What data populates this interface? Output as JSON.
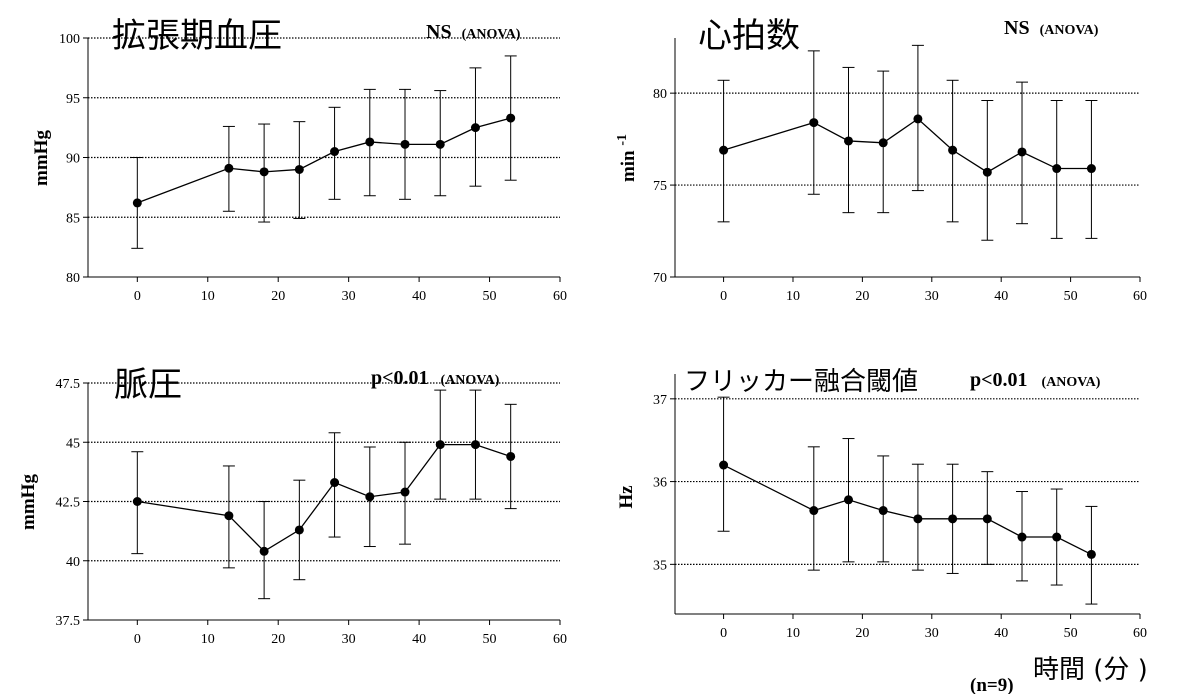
{
  "chart_data": [
    {
      "type": "line",
      "title": "拡張期血圧",
      "stat": "NS",
      "stat_note": "(ANOVA)",
      "ylabel": "mmHg",
      "ylabel_sup": "",
      "xlim": [
        -7,
        60
      ],
      "ylim": [
        80,
        100
      ],
      "yticks": [
        80,
        85,
        90,
        95,
        100
      ],
      "ytick_labels": [
        "80",
        "85",
        "90",
        "95",
        "100"
      ],
      "xticks": [
        0,
        10,
        20,
        30,
        40,
        50,
        60
      ],
      "x": [
        0,
        13,
        18,
        23,
        28,
        33,
        38,
        43,
        48,
        53
      ],
      "y": [
        86.2,
        89.1,
        88.8,
        89.0,
        90.5,
        91.3,
        91.1,
        91.1,
        92.5,
        93.3
      ],
      "err_upper": [
        90.0,
        92.6,
        92.8,
        93.0,
        94.2,
        95.7,
        95.7,
        95.6,
        97.5,
        98.5
      ],
      "err_lower": [
        82.4,
        85.5,
        84.6,
        84.9,
        86.5,
        86.8,
        86.5,
        86.8,
        87.6,
        88.1
      ],
      "grid": "horizontal-dotted"
    },
    {
      "type": "line",
      "title": "心拍数",
      "stat": "NS",
      "stat_note": "(ANOVA)",
      "ylabel": "min",
      "ylabel_sup": "-1",
      "xlim": [
        -7,
        60
      ],
      "ylim": [
        70,
        83
      ],
      "yticks": [
        70,
        75,
        80
      ],
      "ytick_labels": [
        "70",
        "75",
        "80"
      ],
      "xticks": [
        0,
        10,
        20,
        30,
        40,
        50,
        60
      ],
      "x": [
        0,
        13,
        18,
        23,
        28,
        33,
        38,
        43,
        48,
        53
      ],
      "y": [
        76.9,
        78.4,
        77.4,
        77.3,
        78.6,
        76.9,
        75.7,
        76.8,
        75.9,
        75.9
      ],
      "err_upper": [
        80.7,
        82.3,
        81.4,
        81.2,
        82.6,
        80.7,
        79.6,
        80.6,
        79.6,
        79.6
      ],
      "err_lower": [
        73.0,
        74.5,
        73.5,
        73.5,
        74.7,
        73.0,
        72.0,
        72.9,
        72.1,
        72.1
      ],
      "grid": "horizontal-dotted"
    },
    {
      "type": "line",
      "title": "脈圧",
      "stat": "p<0.01",
      "stat_note": "(ANOVA)",
      "ylabel": "mmHg",
      "ylabel_sup": "",
      "xlim": [
        -7,
        60
      ],
      "ylim": [
        37.5,
        47.5
      ],
      "yticks": [
        37.5,
        40,
        42.5,
        45,
        47.5
      ],
      "ytick_labels": [
        "37.5",
        "40",
        "42.5",
        "45",
        "47.5"
      ],
      "xticks": [
        0,
        10,
        20,
        30,
        40,
        50,
        60
      ],
      "x": [
        0,
        13,
        18,
        23,
        28,
        33,
        38,
        43,
        48,
        53
      ],
      "y": [
        42.5,
        41.9,
        40.4,
        41.3,
        43.3,
        42.7,
        42.9,
        44.9,
        44.9,
        44.4
      ],
      "err_upper": [
        44.6,
        44.0,
        42.5,
        43.4,
        45.4,
        44.8,
        45.0,
        47.2,
        47.2,
        46.6
      ],
      "err_lower": [
        40.3,
        39.7,
        38.4,
        39.2,
        41.0,
        40.6,
        40.7,
        42.6,
        42.6,
        42.2
      ],
      "grid": "horizontal-dotted"
    },
    {
      "type": "line",
      "title": "フリッカー融合閾値",
      "stat": "p<0.01",
      "stat_note": "(ANOVA)",
      "ylabel": "Hz",
      "ylabel_sup": "",
      "xlim": [
        -7,
        60
      ],
      "ylim": [
        34.4,
        37.3
      ],
      "yticks": [
        35,
        36,
        37
      ],
      "ytick_labels": [
        "35",
        "36",
        "37"
      ],
      "xticks": [
        0,
        10,
        20,
        30,
        40,
        50,
        60
      ],
      "x": [
        0,
        13,
        18,
        23,
        28,
        33,
        38,
        43,
        48,
        53
      ],
      "y": [
        36.2,
        35.65,
        35.78,
        35.65,
        35.55,
        35.55,
        35.55,
        35.33,
        35.33,
        35.12
      ],
      "err_upper": [
        37.02,
        36.42,
        36.52,
        36.31,
        36.21,
        36.21,
        36.12,
        35.88,
        35.91,
        35.7
      ],
      "err_lower": [
        35.4,
        34.93,
        35.03,
        35.03,
        34.93,
        34.89,
        35.0,
        34.8,
        34.75,
        34.52
      ],
      "grid": "horizontal-dotted"
    }
  ],
  "footer": {
    "n_label": "(n=9)",
    "xaxis_label": "時間 (分 )"
  }
}
